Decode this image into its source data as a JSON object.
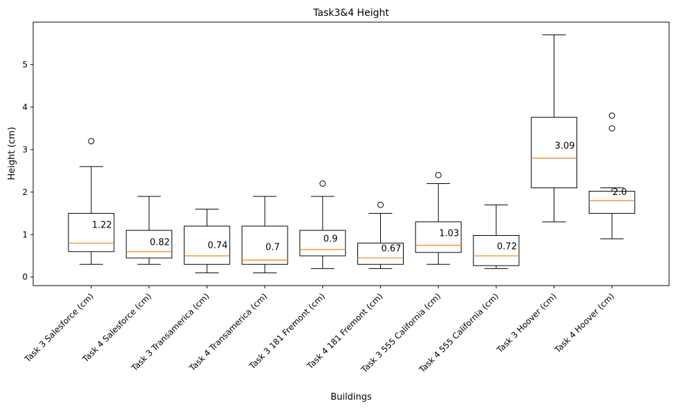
{
  "chart_data": {
    "type": "box",
    "title": "Task3&4 Height",
    "xlabel": "Buildings",
    "ylabel": "Height (cm)",
    "ylim": [
      -0.2,
      6.0
    ],
    "yticks": [
      0,
      1,
      2,
      3,
      4,
      5
    ],
    "categories": [
      "Task 3 Salesforce (cm)",
      "Task 4 Salesforce (cm)",
      "Task 3 Transamerica (cm)",
      "Task 4 Transamerica (cm)",
      "Task 3 181 Fremont (cm)",
      "Task 4 181 Fremont (cm)",
      "Task 3 555 California (cm)",
      "Task 4 555 California (cm)",
      "Task 3 Hoover (cm)",
      "Task 4 Hoover (cm)"
    ],
    "boxes": [
      {
        "whisker_low": 0.3,
        "q1": 0.6,
        "median": 0.8,
        "q3": 1.5,
        "whisker_high": 2.6,
        "outliers": [
          3.2
        ],
        "mean_label": "1.22",
        "mean": 1.22
      },
      {
        "whisker_low": 0.3,
        "q1": 0.45,
        "median": 0.6,
        "q3": 1.1,
        "whisker_high": 1.9,
        "outliers": [],
        "mean_label": "0.82",
        "mean": 0.82
      },
      {
        "whisker_low": 0.1,
        "q1": 0.3,
        "median": 0.5,
        "q3": 1.2,
        "whisker_high": 1.6,
        "outliers": [],
        "mean_label": "0.74",
        "mean": 0.74
      },
      {
        "whisker_low": 0.1,
        "q1": 0.3,
        "median": 0.4,
        "q3": 1.2,
        "whisker_high": 1.9,
        "outliers": [],
        "mean_label": "0.7",
        "mean": 0.7
      },
      {
        "whisker_low": 0.2,
        "q1": 0.5,
        "median": 0.65,
        "q3": 1.1,
        "whisker_high": 1.9,
        "outliers": [
          2.2
        ],
        "mean_label": "0.9",
        "mean": 0.9
      },
      {
        "whisker_low": 0.2,
        "q1": 0.3,
        "median": 0.45,
        "q3": 0.8,
        "whisker_high": 1.5,
        "outliers": [
          1.7
        ],
        "mean_label": "0.67",
        "mean": 0.67
      },
      {
        "whisker_low": 0.3,
        "q1": 0.58,
        "median": 0.75,
        "q3": 1.3,
        "whisker_high": 2.2,
        "outliers": [
          2.4
        ],
        "mean_label": "1.03",
        "mean": 1.03
      },
      {
        "whisker_low": 0.2,
        "q1": 0.27,
        "median": 0.5,
        "q3": 0.98,
        "whisker_high": 1.7,
        "outliers": [],
        "mean_label": "0.72",
        "mean": 0.72
      },
      {
        "whisker_low": 1.3,
        "q1": 2.1,
        "median": 2.8,
        "q3": 3.76,
        "whisker_high": 5.7,
        "outliers": [],
        "mean_label": "3.09",
        "mean": 3.09
      },
      {
        "whisker_low": 0.9,
        "q1": 1.5,
        "median": 1.8,
        "q3": 2.02,
        "whisker_high": 2.1,
        "outliers": [
          3.5,
          3.8
        ],
        "mean_label": "2.0",
        "mean": 2.0
      }
    ],
    "colors": {
      "box": "#000000",
      "median": "#ff7f0e",
      "axes": "#000000"
    },
    "legend": "none",
    "grid": false
  }
}
